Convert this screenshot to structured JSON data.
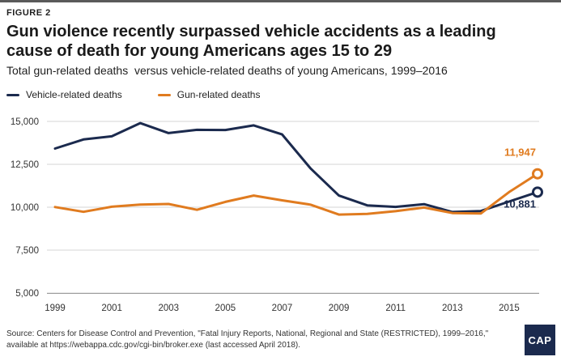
{
  "figure_label": "FIGURE 2",
  "title": "Gun violence recently surpassed vehicle accidents as a leading cause of death for young Americans ages 15 to 29",
  "subtitle": "Total gun-related deaths  versus vehicle-related deaths of young Americans, 1999–2016",
  "source_text": "Source: Centers for Disease Control and Prevention, \"Fatal Injury Reports, National, Regional and State (RESTRICTED), 1999–2016,\" available at https://webappa.cdc.gov/cgi-bin/broker.exe (last accessed April 2018).",
  "logo_text": "CAP",
  "chart_data": {
    "type": "line",
    "title": "Gun violence recently surpassed vehicle accidents as a leading cause of death for young Americans ages 15 to 29",
    "subtitle": "Total gun-related deaths  versus vehicle-related deaths of young Americans, 1999–2016",
    "xlabel": "",
    "ylabel": "",
    "x": [
      1999,
      2000,
      2001,
      2002,
      2003,
      2004,
      2005,
      2006,
      2007,
      2008,
      2009,
      2010,
      2011,
      2012,
      2013,
      2014,
      2015,
      2016
    ],
    "x_tick_labels": [
      "1999",
      "2001",
      "2003",
      "2005",
      "2007",
      "2009",
      "2011",
      "2013",
      "2015"
    ],
    "x_tick_values": [
      1999,
      2001,
      2003,
      2005,
      2007,
      2009,
      2011,
      2013,
      2015
    ],
    "xlim": [
      1999,
      2016
    ],
    "y_tick_labels": [
      "5,000",
      "7,500",
      "10,000",
      "12,500",
      "15,000"
    ],
    "y_tick_values": [
      5000,
      7500,
      10000,
      12500,
      15000
    ],
    "ylim": [
      5000,
      15000
    ],
    "grid": true,
    "legend_position": "top-left",
    "series": [
      {
        "name": "Vehicle-related deaths",
        "color": "#1b2a4e",
        "values": [
          13420,
          13950,
          14130,
          14900,
          14320,
          14510,
          14500,
          14770,
          14240,
          12270,
          10680,
          10110,
          10020,
          10180,
          9720,
          9780,
          10330,
          10881
        ]
      },
      {
        "name": "Gun-related deaths",
        "color": "#e07b1f",
        "values": [
          10010,
          9730,
          10030,
          10150,
          10190,
          9850,
          10310,
          10680,
          10400,
          10150,
          9570,
          9610,
          9770,
          9980,
          9660,
          9630,
          10880,
          11947
        ]
      }
    ],
    "end_labels": [
      {
        "series": "Gun-related deaths",
        "text": "11,947",
        "color": "#e07b1f"
      },
      {
        "series": "Vehicle-related deaths",
        "text": "10,881",
        "color": "#1b2a4e"
      }
    ]
  }
}
